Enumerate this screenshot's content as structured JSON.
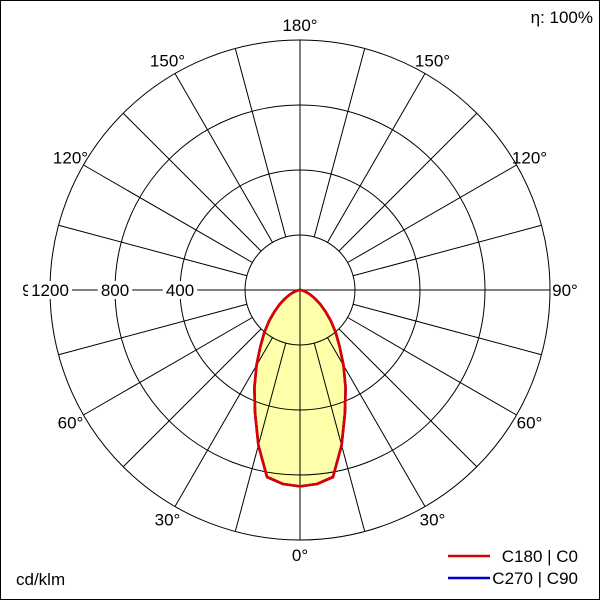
{
  "header": {
    "efficiency": "η: 100%"
  },
  "footer": {
    "unit": "cd/klm"
  },
  "legend": [
    {
      "label": "C180 | C0",
      "color": "#dd0000"
    },
    {
      "label": "C270 | C90",
      "color": "#0000cc"
    }
  ],
  "chart_data": {
    "type": "polar",
    "subtype": "luminous-intensity-distribution",
    "unit": "cd/klm",
    "efficiency_percent": 100,
    "angle_labels_deg": [
      0,
      30,
      60,
      90,
      120,
      150,
      180
    ],
    "spoke_step_deg": 15,
    "radial_ticks_cd_per_klm": [
      400,
      800,
      1200
    ],
    "radial_axis_max": 1200,
    "grid": true,
    "legend_position": "bottom-right",
    "symmetric": true,
    "fill_color": "#ffffaa",
    "series": [
      {
        "name": "C180 | C0",
        "color": "#dd0000",
        "gamma_deg": [
          0,
          5,
          10,
          15,
          20,
          25,
          30,
          35,
          40,
          45,
          50,
          55,
          60,
          65,
          70,
          75,
          80,
          85,
          90
        ],
        "intensity_cd_per_klm": [
          870,
          860,
          830,
          650,
          470,
          360,
          290,
          230,
          185,
          145,
          110,
          82,
          58,
          40,
          26,
          15,
          8,
          3,
          0
        ]
      },
      {
        "name": "C270 | C90",
        "color": "#0000cc",
        "gamma_deg": [
          0,
          5,
          10,
          15,
          20,
          25,
          30,
          35,
          40,
          45,
          50,
          55,
          60,
          65,
          70,
          75,
          80,
          85,
          90
        ],
        "intensity_cd_per_klm": [
          870,
          860,
          830,
          650,
          470,
          360,
          290,
          230,
          185,
          145,
          110,
          82,
          58,
          40,
          26,
          15,
          8,
          3,
          0
        ]
      }
    ]
  }
}
